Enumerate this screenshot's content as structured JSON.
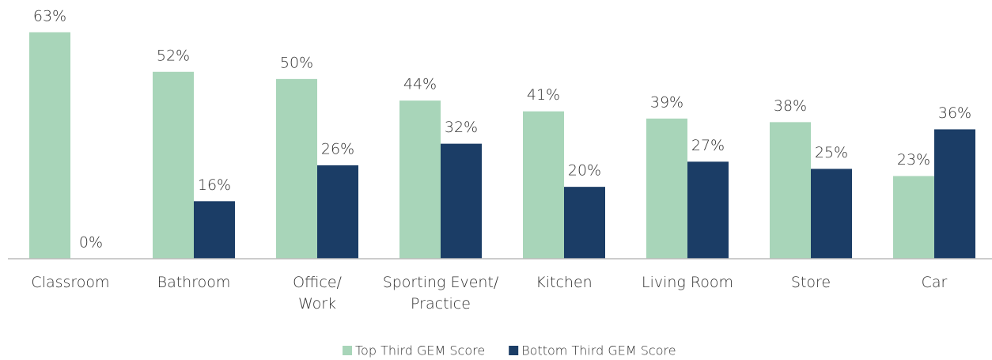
{
  "chart_data": {
    "type": "bar",
    "categories": [
      "Classroom",
      "Bathroom",
      "Office/\nWork",
      "Sporting Event/\nPractice",
      "Kitchen",
      "Living Room",
      "Store",
      "Car"
    ],
    "series": [
      {
        "name": "Top Third GEM Score",
        "color": "#a8d5b9",
        "values": [
          63,
          52,
          50,
          44,
          41,
          39,
          38,
          23
        ],
        "value_labels": [
          "63%",
          "52%",
          "50%",
          "44%",
          "41%",
          "39%",
          "38%",
          "23%"
        ]
      },
      {
        "name": "Bottom Third GEM Score",
        "color": "#1b3d66",
        "values": [
          0,
          16,
          26,
          32,
          20,
          27,
          25,
          36
        ],
        "value_labels": [
          "0%",
          "16%",
          "26%",
          "32%",
          "20%",
          "27%",
          "25%",
          "36%"
        ]
      }
    ],
    "ylim": [
      0,
      70
    ],
    "legend": "bottom"
  }
}
